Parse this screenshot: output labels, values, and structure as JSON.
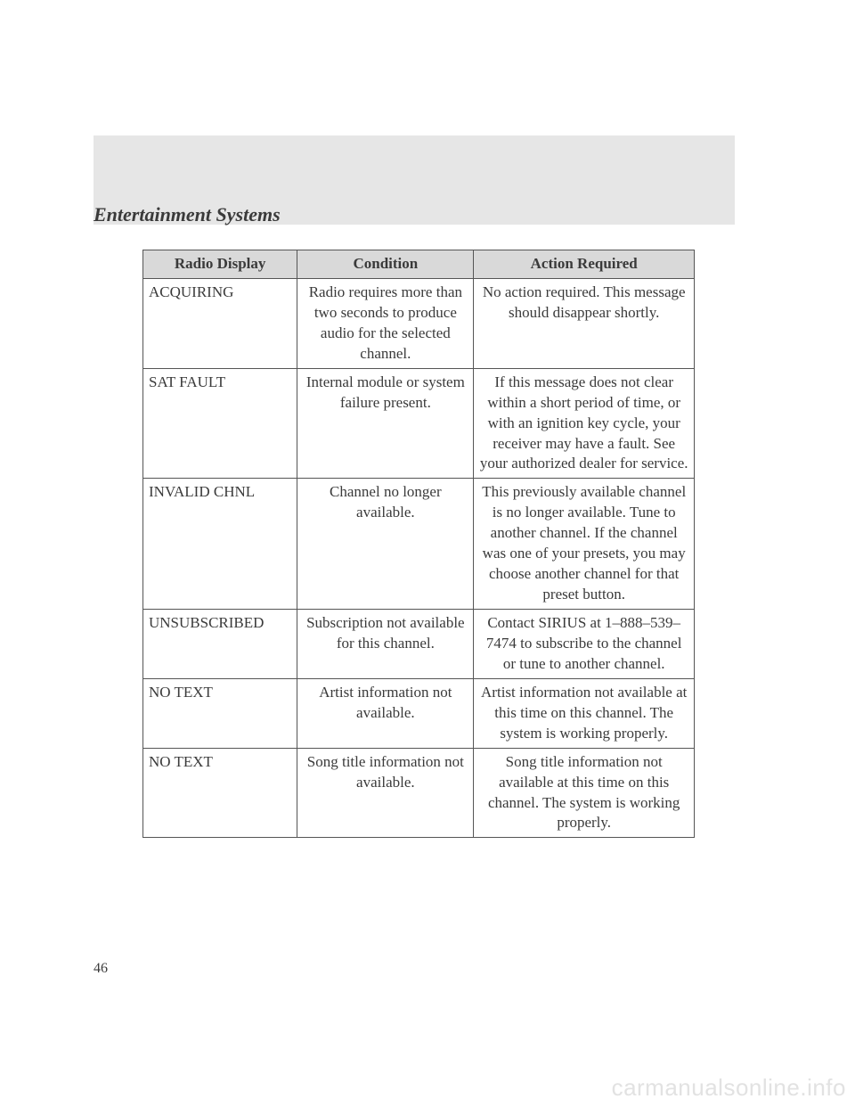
{
  "section_title": "Entertainment Systems",
  "page_number": "46",
  "watermark": "carmanualsonline.info",
  "table": {
    "type": "table",
    "header_bg": "#d9d9d9",
    "border_color": "#555555",
    "columns": [
      "Radio Display",
      "Condition",
      "Action Required"
    ],
    "col_widths_pct": [
      28,
      32,
      40
    ],
    "rows": [
      {
        "display": "ACQUIRING",
        "condition": "Radio requires more than two seconds to produce audio for the selected channel.",
        "action": "No action required. This message should disappear shortly."
      },
      {
        "display": "SAT FAULT",
        "condition": "Internal module or system failure present.",
        "action": "If this message does not clear within a short period of time, or with an ignition key cycle, your receiver may have a fault. See your authorized dealer for service."
      },
      {
        "display": "INVALID CHNL",
        "condition": "Channel no longer available.",
        "action": "This previously available channel is no longer available. Tune to another channel. If the channel was one of your presets, you may choose another channel for that preset button."
      },
      {
        "display": "UNSUBSCRIBED",
        "condition": "Subscription not available for this channel.",
        "action": "Contact SIRIUS at 1–888–539–7474 to subscribe to the channel or tune to another channel."
      },
      {
        "display": "NO TEXT",
        "condition": "Artist information not available.",
        "action": "Artist information not available at this time on this channel. The system is working properly."
      },
      {
        "display": "NO TEXT",
        "condition": "Song title information not available.",
        "action": "Song title information not available at this time on this channel. The system is working properly."
      }
    ]
  }
}
